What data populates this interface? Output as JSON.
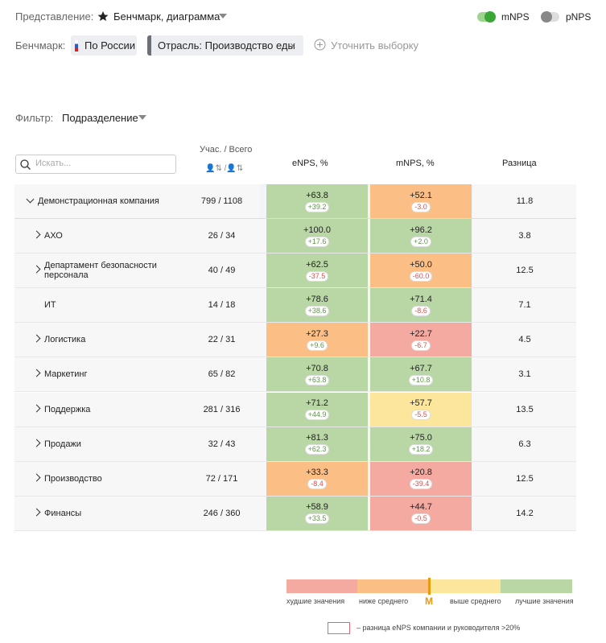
{
  "header": {
    "view_label": "Представление:",
    "view_value": "Бенчмарк, диаграмма",
    "toggles": [
      {
        "label": "mNPS",
        "on": true
      },
      {
        "label": "pNPS",
        "on": false
      }
    ],
    "benchmark_label": "Бенчмарк:",
    "chips": [
      "По России",
      "Отрасль: Производство еды"
    ],
    "refine": "Уточнить выборку",
    "filter_label": "Фильтр:",
    "filter_value": "Подразделение"
  },
  "table": {
    "search_placeholder": "Искать...",
    "columns": [
      "Учас. / Всего",
      "eNPS, %",
      "mNPS, %",
      "Разница"
    ],
    "rows": [
      {
        "name": "Демонстрационная компания",
        "count": "799 / 1108",
        "enps": "+63.8",
        "enps_delta": "+39.2",
        "enps_level": "best",
        "mnps": "+52.1",
        "mnps_delta": "-3.0",
        "mnps_level": "below",
        "diff": "11.8",
        "expanded": true
      },
      {
        "name": "АХО",
        "count": "26 / 34",
        "enps": "+100.0",
        "enps_delta": "+17.6",
        "enps_level": "best",
        "mnps": "+96.2",
        "mnps_delta": "+2.0",
        "mnps_level": "best",
        "diff": "3.8",
        "expandable": true
      },
      {
        "name": "Департамент безопасности персонала",
        "count": "40 / 49",
        "enps": "+62.5",
        "enps_delta": "-37.5",
        "enps_level": "best",
        "mnps": "+50.0",
        "mnps_delta": "-60.0",
        "mnps_level": "below",
        "diff": "12.5",
        "expandable": true
      },
      {
        "name": "ИТ",
        "count": "14 / 18",
        "enps": "+78.6",
        "enps_delta": "+38.6",
        "enps_level": "best",
        "mnps": "+71.4",
        "mnps_delta": "-8.6",
        "mnps_level": "best",
        "diff": "7.1",
        "expandable": false
      },
      {
        "name": "Логистика",
        "count": "22 / 31",
        "enps": "+27.3",
        "enps_delta": "+9.6",
        "enps_level": "below",
        "mnps": "+22.7",
        "mnps_delta": "-6.7",
        "mnps_level": "worst",
        "diff": "4.5",
        "expandable": true
      },
      {
        "name": "Маркетинг",
        "count": "65 / 82",
        "enps": "+70.8",
        "enps_delta": "+63.8",
        "enps_level": "best",
        "mnps": "+67.7",
        "mnps_delta": "+10.8",
        "mnps_level": "best",
        "diff": "3.1",
        "expandable": true
      },
      {
        "name": "Поддержка",
        "count": "281 / 316",
        "enps": "+71.2",
        "enps_delta": "+44.9",
        "enps_level": "best",
        "mnps": "+57.7",
        "mnps_delta": "-5.5",
        "mnps_level": "above",
        "diff": "13.5",
        "expandable": true
      },
      {
        "name": "Продажи",
        "count": "32 / 43",
        "enps": "+81.3",
        "enps_delta": "+62.3",
        "enps_level": "best",
        "mnps": "+75.0",
        "mnps_delta": "+18.2",
        "mnps_level": "best",
        "diff": "6.3",
        "expandable": true
      },
      {
        "name": "Производство",
        "count": "72 / 171",
        "enps": "+33.3",
        "enps_delta": "-8.4",
        "enps_level": "below",
        "mnps": "+20.8",
        "mnps_delta": "-39.4",
        "mnps_level": "worst",
        "diff": "12.5",
        "expandable": true
      },
      {
        "name": "Финансы",
        "count": "246 / 360",
        "enps": "+58.9",
        "enps_delta": "+33.5",
        "enps_level": "best",
        "mnps": "+44.7",
        "mnps_delta": "-0.5",
        "mnps_level": "worst",
        "diff": "14.2",
        "expandable": true
      }
    ]
  },
  "legend": {
    "items": [
      {
        "label": "худшие значения",
        "color": "#f4a9a1"
      },
      {
        "label": "ниже среднего",
        "color": "#fbbf86"
      },
      {
        "label": "выше среднего",
        "color": "#fbe69c"
      },
      {
        "label": "лучшие значения",
        "color": "#b9d6a5"
      }
    ],
    "marker": "М",
    "note": "– разница eNPS компании и руководителя >20%"
  }
}
